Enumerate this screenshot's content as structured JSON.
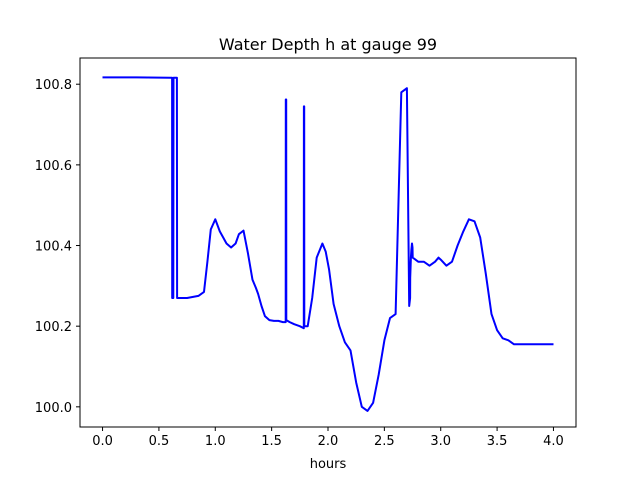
{
  "chart_data": {
    "type": "line",
    "title": "Water Depth h at gauge 99",
    "xlabel": "hours",
    "ylabel": "",
    "xlim": [
      -0.2,
      4.2
    ],
    "ylim": [
      99.95,
      100.865
    ],
    "xticks": [
      0.0,
      0.5,
      1.0,
      1.5,
      2.0,
      2.5,
      3.0,
      3.5,
      4.0
    ],
    "xtick_labels": [
      "0.0",
      "0.5",
      "1.0",
      "1.5",
      "2.0",
      "2.5",
      "3.0",
      "3.5",
      "4.0"
    ],
    "yticks": [
      100.0,
      100.2,
      100.4,
      100.6,
      100.8
    ],
    "ytick_labels": [
      "100.0",
      "100.2",
      "100.4",
      "100.6",
      "100.8"
    ],
    "grid": false,
    "color": "#0000ff",
    "series": [
      {
        "x": [
          0.0,
          0.3,
          0.6,
          0.617,
          0.618,
          0.628,
          0.629,
          0.64,
          0.65,
          0.66,
          0.661,
          0.67,
          0.75,
          0.85,
          0.9,
          0.93,
          0.96,
          1.0,
          1.04,
          1.07,
          1.1,
          1.14,
          1.18,
          1.21,
          1.25,
          1.29,
          1.33,
          1.36,
          1.38,
          1.41,
          1.44,
          1.48,
          1.52,
          1.56,
          1.6,
          1.625,
          1.626,
          1.629,
          1.63,
          1.66,
          1.7,
          1.75,
          1.785,
          1.786,
          1.789,
          1.79,
          1.82,
          1.86,
          1.9,
          1.95,
          1.98,
          2.01,
          2.05,
          2.1,
          2.15,
          2.2,
          2.25,
          2.3,
          2.35,
          2.4,
          2.45,
          2.5,
          2.55,
          2.6,
          2.65,
          2.7,
          2.72,
          2.728,
          2.729,
          2.735,
          2.74,
          2.745,
          2.75,
          2.751,
          2.8,
          2.85,
          2.9,
          2.95,
          2.98,
          3.0,
          3.05,
          3.1,
          3.15,
          3.2,
          3.25,
          3.3,
          3.35,
          3.4,
          3.45,
          3.5,
          3.55,
          3.6,
          3.65,
          3.7,
          3.75,
          3.8,
          3.85,
          3.9,
          3.95,
          4.0
        ],
        "values": [
          100.817,
          100.817,
          100.816,
          100.816,
          100.27,
          100.27,
          100.816,
          100.816,
          100.816,
          100.816,
          100.27,
          100.27,
          100.27,
          100.275,
          100.285,
          100.36,
          100.44,
          100.465,
          100.435,
          100.42,
          100.405,
          100.395,
          100.405,
          100.428,
          100.437,
          100.38,
          100.315,
          100.295,
          100.28,
          100.25,
          100.225,
          100.215,
          100.213,
          100.213,
          100.21,
          100.21,
          100.762,
          100.762,
          100.215,
          100.21,
          100.205,
          100.2,
          100.195,
          100.745,
          100.745,
          100.2,
          100.2,
          100.27,
          100.37,
          100.405,
          100.385,
          100.34,
          100.255,
          100.2,
          100.16,
          100.14,
          100.06,
          100.0,
          99.99,
          100.01,
          100.08,
          100.165,
          100.22,
          100.23,
          100.78,
          100.79,
          100.25,
          100.27,
          100.32,
          100.37,
          100.39,
          100.405,
          100.395,
          100.37,
          100.36,
          100.36,
          100.35,
          100.36,
          100.37,
          100.365,
          100.35,
          100.36,
          100.4,
          100.435,
          100.465,
          100.46,
          100.42,
          100.33,
          100.23,
          100.19,
          100.17,
          100.165,
          100.155,
          100.155,
          100.155,
          100.155,
          100.155,
          100.155,
          100.155,
          100.155
        ]
      }
    ]
  }
}
